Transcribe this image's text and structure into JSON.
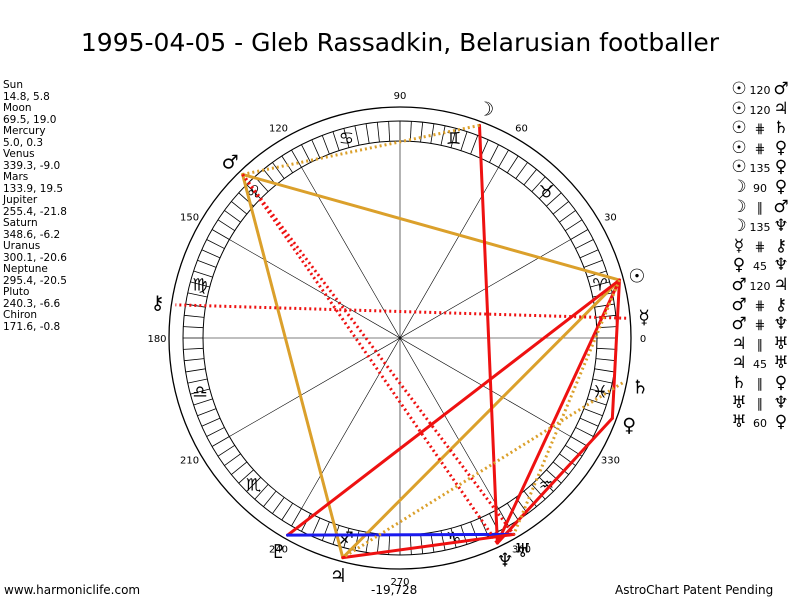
{
  "title": "1995-04-05 - Gleb Rassadkin, Belarusian footballer",
  "planets": [
    {
      "name": "Sun",
      "coords": "14.8, 5.8",
      "glyph": "☉",
      "color": "#000000"
    },
    {
      "name": "Moon",
      "coords": "69.5, 19.0",
      "glyph": "☽",
      "color": "#000000"
    },
    {
      "name": "Mercury",
      "coords": "5.0, 0.3",
      "glyph": "☿",
      "color": "#000000"
    },
    {
      "name": "Venus",
      "coords": "339.3, -9.0",
      "glyph": "♀",
      "color": "#000000"
    },
    {
      "name": "Mars",
      "coords": "133.9, 19.5",
      "glyph": "♂",
      "color": "#000000"
    },
    {
      "name": "Jupiter",
      "coords": "255.4, -21.8",
      "glyph": "♃",
      "color": "#000000"
    },
    {
      "name": "Saturn",
      "coords": "348.6, -6.2",
      "glyph": "♄",
      "color": "#000000"
    },
    {
      "name": "Uranus",
      "coords": "300.1, -20.6",
      "glyph": "♅",
      "color": "#000000"
    },
    {
      "name": "Neptune",
      "coords": "295.4, -20.5",
      "glyph": "♆",
      "color": "#000000"
    },
    {
      "name": "Pluto",
      "coords": "240.3, -6.6",
      "glyph": "♇",
      "color": "#000000"
    },
    {
      "name": "Chiron",
      "coords": "171.6, -0.8",
      "glyph": "⚷",
      "color": "#000000"
    }
  ],
  "aspects": [
    {
      "p1": "☉",
      "asp": "120",
      "p2": "♂"
    },
    {
      "p1": "☉",
      "asp": "120",
      "p2": "♃"
    },
    {
      "p1": "☉",
      "asp": "⋕",
      "p2": "♄"
    },
    {
      "p1": "☉",
      "asp": "⋕",
      "p2": "♀"
    },
    {
      "p1": "☉",
      "asp": "135",
      "p2": "♀"
    },
    {
      "p1": "☽",
      "asp": "90",
      "p2": "♀"
    },
    {
      "p1": "☽",
      "asp": "∥",
      "p2": "♂"
    },
    {
      "p1": "☽",
      "asp": "135",
      "p2": "♆"
    },
    {
      "p1": "☿",
      "asp": "⋕",
      "p2": "⚷"
    },
    {
      "p1": "♀",
      "asp": "45",
      "p2": "♆"
    },
    {
      "p1": "♂",
      "asp": "120",
      "p2": "♃"
    },
    {
      "p1": "♂",
      "asp": "⋕",
      "p2": "⚷"
    },
    {
      "p1": "♂",
      "asp": "⋕",
      "p2": "♆"
    },
    {
      "p1": "♃",
      "asp": "∥",
      "p2": "♅"
    },
    {
      "p1": "♃",
      "asp": "45",
      "p2": "♅"
    },
    {
      "p1": "♄",
      "asp": "∥",
      "p2": "♀"
    },
    {
      "p1": "♅",
      "asp": "∥",
      "p2": "♆"
    },
    {
      "p1": "♅",
      "asp": "60",
      "p2": "♀"
    }
  ],
  "zodiac_signs": [
    {
      "glyph": "♈",
      "lon": 15
    },
    {
      "glyph": "♉",
      "lon": 45
    },
    {
      "glyph": "♊",
      "lon": 75
    },
    {
      "glyph": "♋",
      "lon": 105
    },
    {
      "glyph": "♌",
      "lon": 135
    },
    {
      "glyph": "♍",
      "lon": 165
    },
    {
      "glyph": "♎",
      "lon": 195
    },
    {
      "glyph": "♏",
      "lon": 225
    },
    {
      "glyph": "♐",
      "lon": 255
    },
    {
      "glyph": "♑",
      "lon": 285
    },
    {
      "glyph": "♒",
      "lon": 315
    },
    {
      "glyph": "♓",
      "lon": 345
    }
  ],
  "degree_labels": [
    "0",
    "30",
    "60",
    "90",
    "120",
    "150",
    "180",
    "210",
    "240",
    "270",
    "300",
    "330"
  ],
  "chart_lines": [
    {
      "from": 14.8,
      "to": 133.9,
      "color": "#dba02b",
      "dotted": false
    },
    {
      "from": 14.8,
      "to": 255.4,
      "color": "#dba02b",
      "dotted": false
    },
    {
      "from": 133.9,
      "to": 255.4,
      "color": "#dba02b",
      "dotted": false
    },
    {
      "from": 14.8,
      "to": 240.3,
      "color": "#ee1111",
      "dotted": false
    },
    {
      "from": 14.8,
      "to": 295.4,
      "color": "#ee1111",
      "dotted": false
    },
    {
      "from": 69.5,
      "to": 295.4,
      "color": "#ee1111",
      "dotted": false
    },
    {
      "from": 339.3,
      "to": 295.4,
      "color": "#ee1111",
      "dotted": false
    },
    {
      "from": 240.3,
      "to": 300.1,
      "color": "#1a1aee",
      "dotted": false
    },
    {
      "from": 255.4,
      "to": 300.1,
      "color": "#ee1111",
      "dotted": false
    },
    {
      "from": 14.8,
      "to": 339.3,
      "color": "#ee1111",
      "dotted": false
    },
    {
      "from": 69.5,
      "to": 133.9,
      "color": "#dba02b",
      "dotted": true
    },
    {
      "from": 5.0,
      "to": 171.6,
      "color": "#ee1111",
      "dotted": true
    },
    {
      "from": 133.9,
      "to": 300.1,
      "color": "#ee1111",
      "dotted": true
    },
    {
      "from": 133.9,
      "to": 295.4,
      "color": "#ee1111",
      "dotted": true
    },
    {
      "from": 348.6,
      "to": 255.4,
      "color": "#dba02b",
      "dotted": true
    },
    {
      "from": 14.8,
      "to": 300.1,
      "color": "#dba02b",
      "dotted": true
    }
  ],
  "footer": {
    "left": "www.harmoniclife.com",
    "center": "-19,728",
    "right": "AstroChart Patent Pending"
  }
}
